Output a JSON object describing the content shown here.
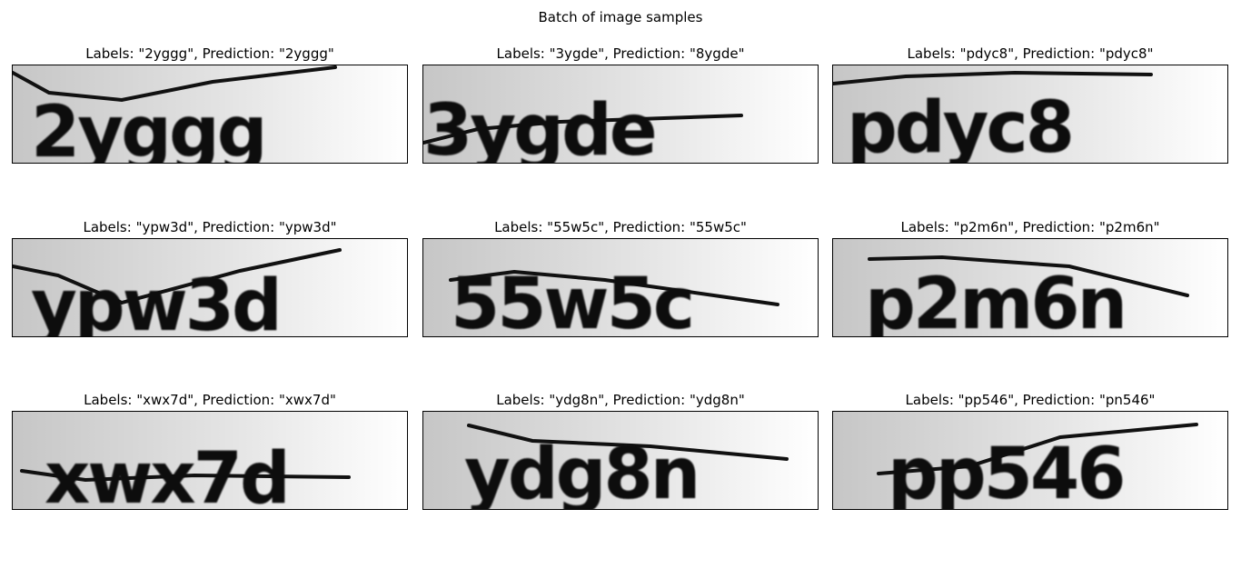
{
  "figure": {
    "title": "Batch of image samples"
  },
  "samples": [
    {
      "title": "Labels: \"2yggg\", Prediction: \"2yggg\"",
      "image_text": "2yggg"
    },
    {
      "title": "Labels: \"3ygde\", Prediction: \"8ygde\"",
      "image_text": "3ygde"
    },
    {
      "title": "Labels: \"pdyc8\", Prediction: \"pdyc8\"",
      "image_text": "pdyc8"
    },
    {
      "title": "Labels: \"ypw3d\", Prediction: \"ypw3d\"",
      "image_text": "ypw3d"
    },
    {
      "title": "Labels: \"55w5c\", Prediction: \"55w5c\"",
      "image_text": "55w5c"
    },
    {
      "title": "Labels: \"p2m6n\", Prediction: \"p2m6n\"",
      "image_text": "p2m6n"
    },
    {
      "title": "Labels: \"xwx7d\", Prediction: \"xwx7d\"",
      "image_text": "xwx7d"
    },
    {
      "title": "Labels: \"ydg8n\", Prediction: \"ydg8n\"",
      "image_text": "ydg8n"
    },
    {
      "title": "Labels: \"pp546\", Prediction: \"pn546\"",
      "image_text": "pp546"
    }
  ]
}
